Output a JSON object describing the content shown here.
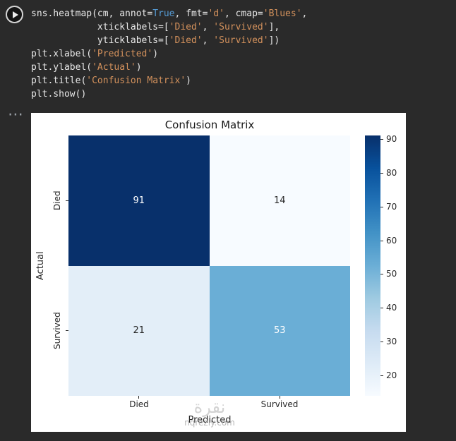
{
  "cell": {
    "more_icon": "⋯"
  },
  "code": {
    "colors": {
      "plain": "#e8e8e8",
      "keyword": "#569cd6",
      "string": "#d3915c"
    },
    "lines": [
      {
        "tokens": [
          {
            "text": "sns.heatmap(cm, annot=",
            "type": "plain"
          },
          {
            "text": "True",
            "type": "keyword"
          },
          {
            "text": ", fmt=",
            "type": "plain"
          },
          {
            "text": "'d'",
            "type": "string"
          },
          {
            "text": ", cmap=",
            "type": "plain"
          },
          {
            "text": "'Blues'",
            "type": "string"
          },
          {
            "text": ",",
            "type": "plain"
          }
        ]
      },
      {
        "tokens": [
          {
            "text": "            xticklabels=[",
            "type": "plain"
          },
          {
            "text": "'Died'",
            "type": "string"
          },
          {
            "text": ", ",
            "type": "plain"
          },
          {
            "text": "'Survived'",
            "type": "string"
          },
          {
            "text": "],",
            "type": "plain"
          }
        ]
      },
      {
        "tokens": [
          {
            "text": "            yticklabels=[",
            "type": "plain"
          },
          {
            "text": "'Died'",
            "type": "string"
          },
          {
            "text": ", ",
            "type": "plain"
          },
          {
            "text": "'Survived'",
            "type": "string"
          },
          {
            "text": "])",
            "type": "plain"
          }
        ]
      },
      {
        "tokens": [
          {
            "text": "plt.xlabel(",
            "type": "plain"
          },
          {
            "text": "'Predicted'",
            "type": "string"
          },
          {
            "text": ")",
            "type": "plain"
          }
        ]
      },
      {
        "tokens": [
          {
            "text": "plt.ylabel(",
            "type": "plain"
          },
          {
            "text": "'Actual'",
            "type": "string"
          },
          {
            "text": ")",
            "type": "plain"
          }
        ]
      },
      {
        "tokens": [
          {
            "text": "plt.title(",
            "type": "plain"
          },
          {
            "text": "'Confusion Matrix'",
            "type": "string"
          },
          {
            "text": ")",
            "type": "plain"
          }
        ]
      },
      {
        "tokens": [
          {
            "text": "plt.show()",
            "type": "plain"
          }
        ]
      }
    ]
  },
  "chart_data": {
    "type": "heatmap",
    "title": "Confusion Matrix",
    "xlabel": "Predicted",
    "ylabel": "Actual",
    "x_categories": [
      "Died",
      "Survived"
    ],
    "y_categories": [
      "Died",
      "Survived"
    ],
    "values": [
      [
        91,
        14
      ],
      [
        21,
        53
      ]
    ],
    "cmap": "Blues",
    "cell_colors": [
      [
        "#08306b",
        "#f7fbff"
      ],
      [
        "#e3eef8",
        "#6aaed6"
      ]
    ],
    "cell_text_colors": [
      [
        "#ffffff",
        "#262626"
      ],
      [
        "#262626",
        "#ffffff"
      ]
    ],
    "colorbar": {
      "vmin": 14,
      "vmax": 91,
      "ticks": [
        20,
        30,
        40,
        50,
        60,
        70,
        80,
        90
      ],
      "gradient_top_to_bottom": [
        "#08306b",
        "#08519c",
        "#2171b5",
        "#4292c6",
        "#6baed6",
        "#9ecae1",
        "#c6dbef",
        "#deebf7",
        "#f7fbff"
      ]
    },
    "legend": "colorbar-right",
    "grid": false
  },
  "watermark": {
    "line1": "نقرة",
    "line2": "nqrezly.com"
  }
}
